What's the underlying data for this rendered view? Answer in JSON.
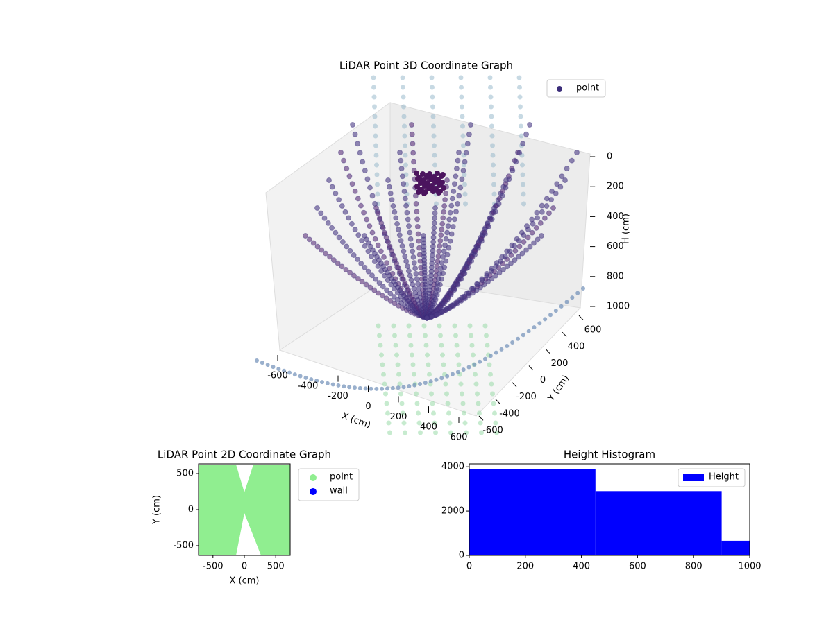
{
  "chart_data": [
    {
      "type": "scatter3d",
      "title": "LiDAR Point 3D Coordinate Graph",
      "xlabel": "X (cm)",
      "ylabel": "Y (cm)",
      "zlabel": "H (cm)",
      "legend": [
        "point"
      ],
      "legend_corner": "upper right",
      "color": "#3b2d7a",
      "xlim": [
        -600,
        600
      ],
      "xticks": [
        -600,
        -400,
        -200,
        0,
        200,
        400,
        600
      ],
      "ylim": [
        -600,
        600
      ],
      "yticks": [
        -600,
        -400,
        -200,
        0,
        200,
        400,
        600
      ],
      "zlim": [
        0,
        1000
      ],
      "zticks": [
        0,
        200,
        400,
        600,
        800,
        1000
      ]
    },
    {
      "type": "scatter",
      "title": "LiDAR Point 2D Coordinate Graph",
      "xlabel": "X (cm)",
      "ylabel": "Y (cm)",
      "series": [
        {
          "name": "point",
          "color": "#90ee90"
        },
        {
          "name": "wall",
          "color": "#0000ff"
        }
      ],
      "legend_corner": "outside right",
      "xlim": [
        -730,
        730
      ],
      "xticks": [
        -500,
        0,
        500
      ],
      "ylim": [
        -635,
        635
      ],
      "yticks": [
        -500,
        0,
        500
      ]
    },
    {
      "type": "histogram",
      "title": "Height Histogram",
      "legend": [
        "Height"
      ],
      "legend_corner": "upper right",
      "color": "#0000ff",
      "bins": [
        0,
        450,
        900,
        1000
      ],
      "values": [
        3900,
        2900,
        660
      ],
      "xlim": [
        0,
        1000
      ],
      "xticks": [
        0,
        200,
        400,
        600,
        800,
        1000
      ],
      "ylim": [
        0,
        4130
      ],
      "yticks": [
        0,
        2000,
        4000
      ]
    }
  ]
}
